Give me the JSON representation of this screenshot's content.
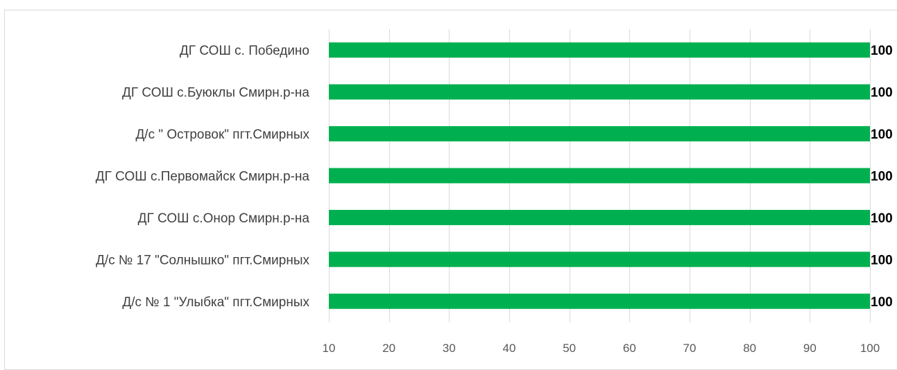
{
  "chart_data": {
    "type": "bar",
    "orientation": "horizontal",
    "categories": [
      "ДГ СОШ с. Победино",
      "ДГ СОШ с.Буюклы Смирн.р-на",
      "Д/с \" Островок\" пгт.Смирных",
      "ДГ СОШ с.Первомайск Смирн.р-на",
      "ДГ СОШ с.Онор Смирн.р-на",
      "Д/с № 17 \"Солнышко\" пгт.Смирных",
      "Д/с № 1 \"Улыбка\" пгт.Смирных"
    ],
    "values": [
      100,
      100,
      100,
      100,
      100,
      100,
      100
    ],
    "data_labels": [
      "100",
      "100",
      "100",
      "100",
      "100",
      "100",
      "100"
    ],
    "xlim": [
      10,
      100
    ],
    "x_ticks": [
      10,
      20,
      30,
      40,
      50,
      60,
      70,
      80,
      90,
      100
    ],
    "x_tick_labels": [
      "10",
      "20",
      "30",
      "40",
      "50",
      "60",
      "70",
      "80",
      "90",
      "100"
    ],
    "grid": true,
    "legend": "none",
    "bar_color": "#00b050"
  }
}
